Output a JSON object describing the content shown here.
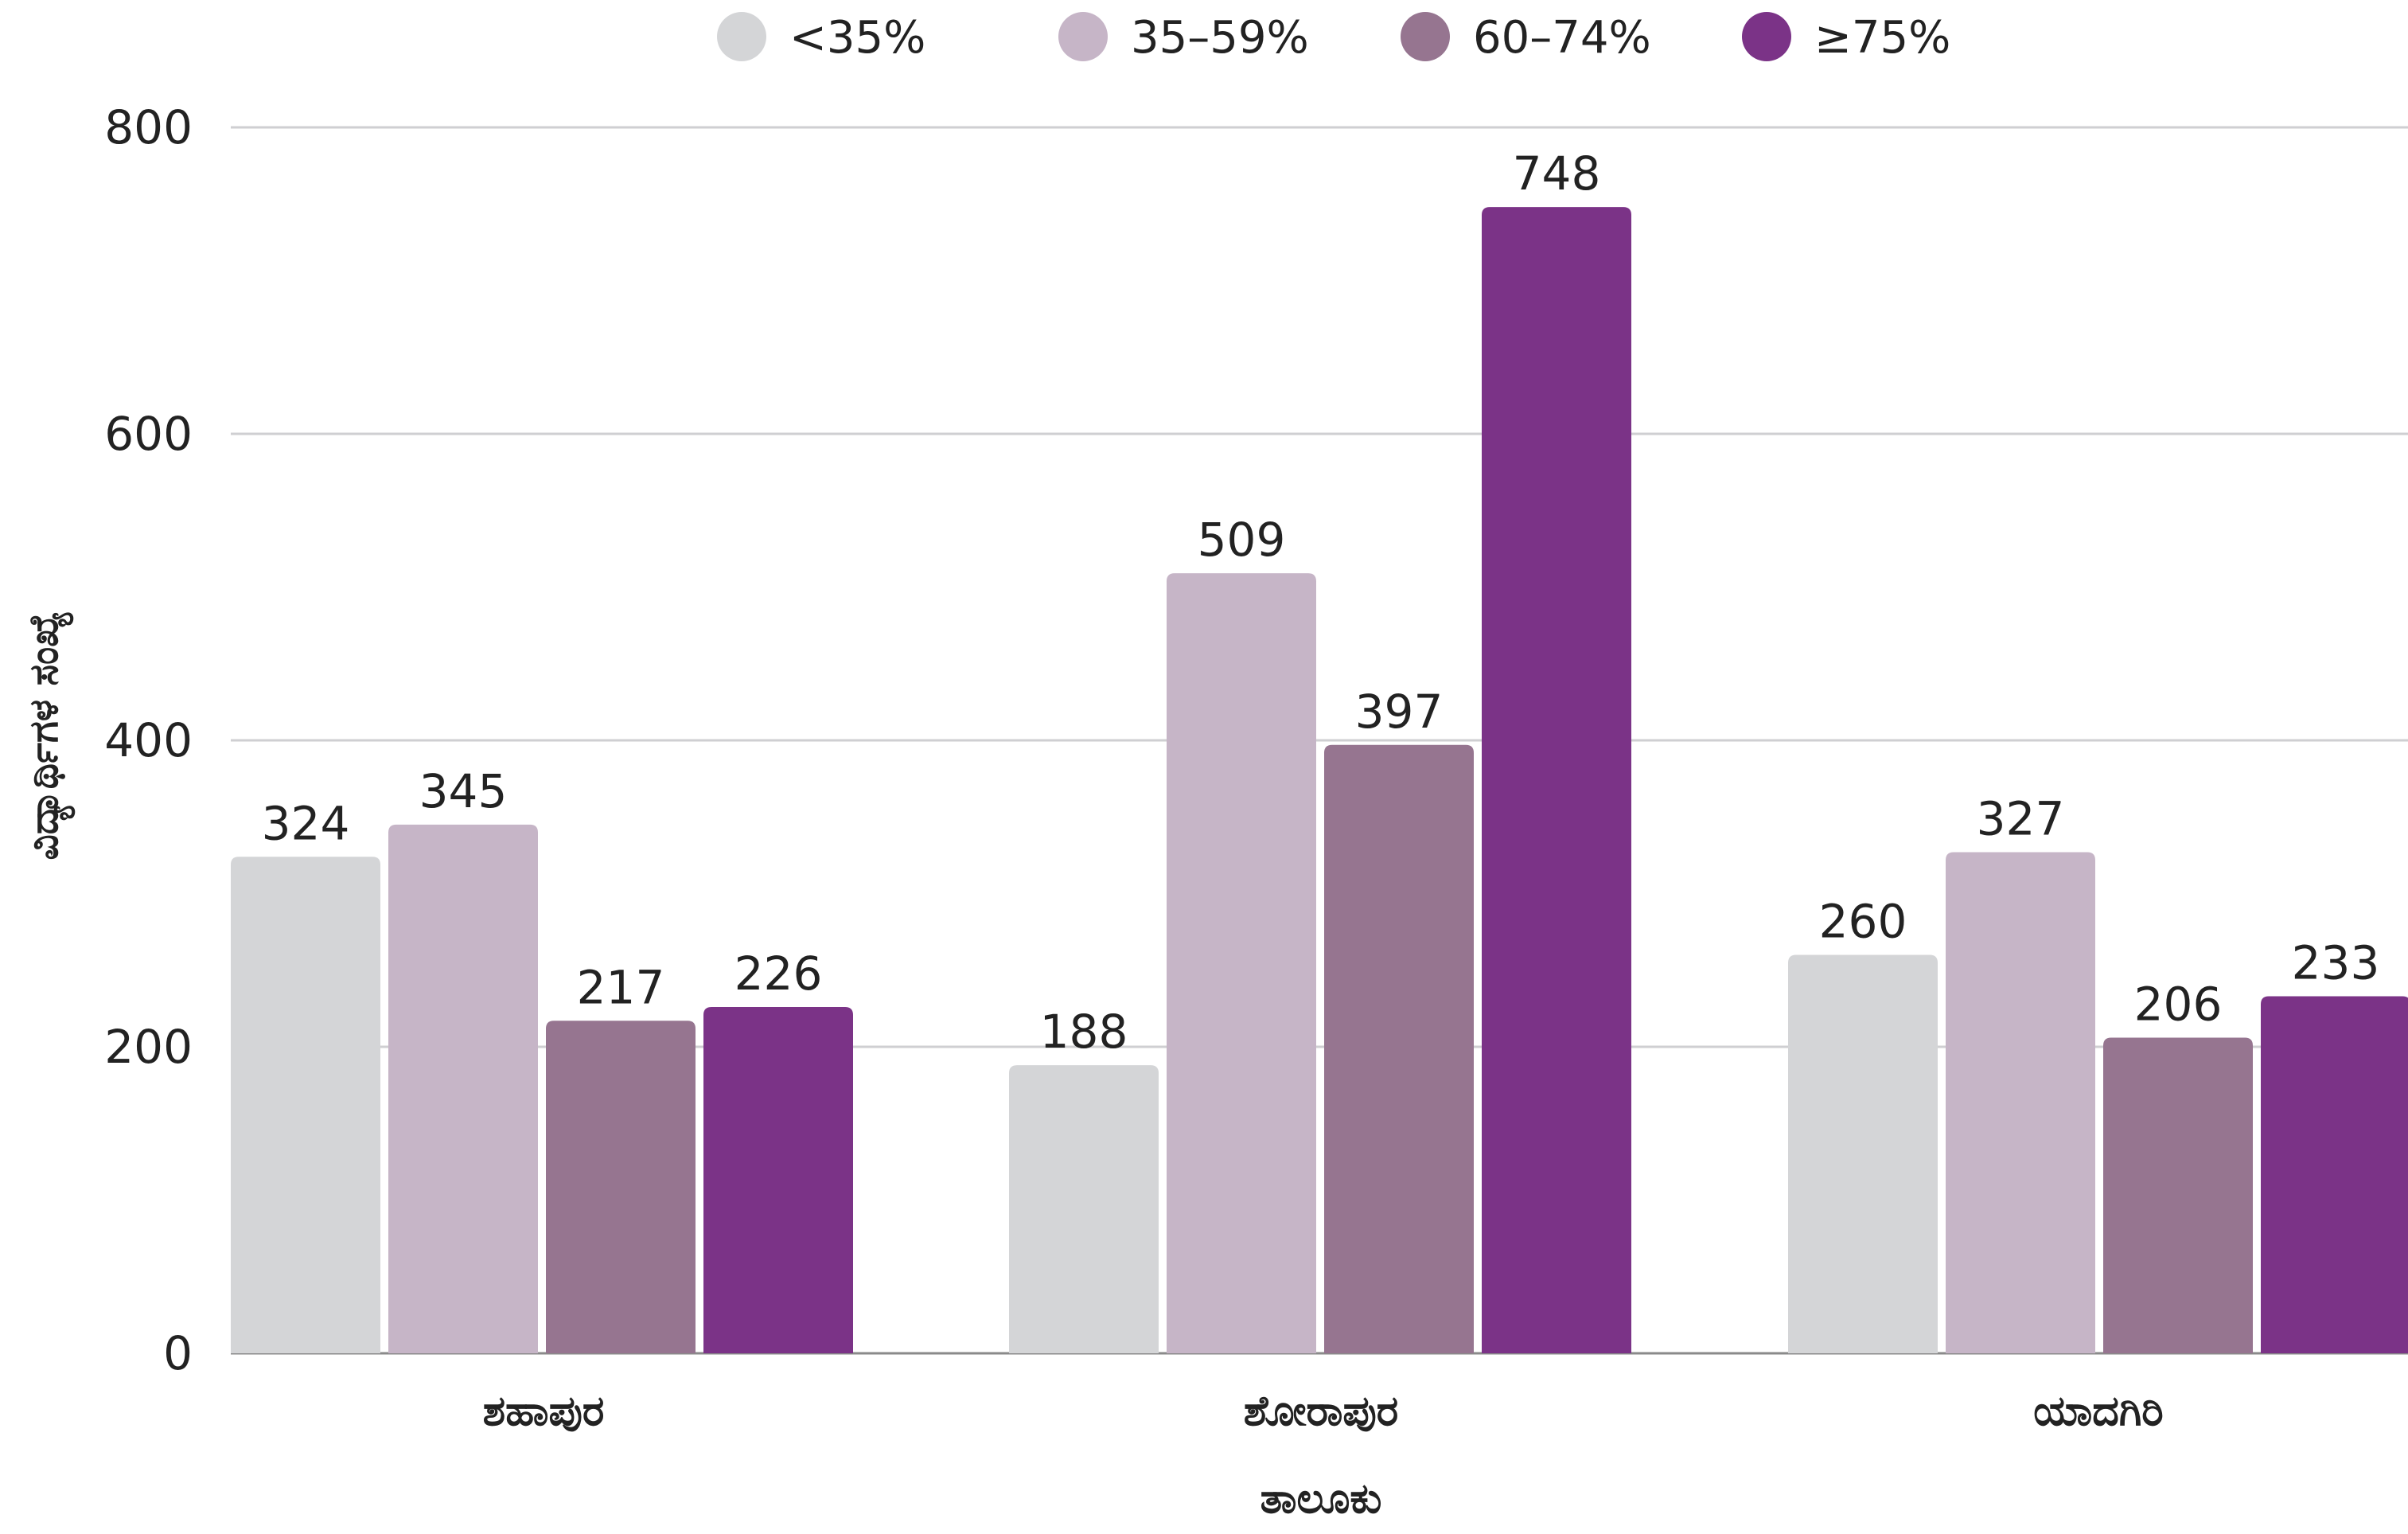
{
  "chart_data": {
    "type": "bar",
    "title": "",
    "xlabel": "ತಾಲೂಕು",
    "ylabel": "ವಿದ್ಯಾರ್ಥಿಗಳ ಸಂಖ್ಯೆ",
    "categories": [
      "ಶಹಾಪುರ",
      "ಶೋರಾಪುರ",
      "ಯಾದಗಿರಿ"
    ],
    "series": [
      {
        "name": "<35%",
        "color": "#d4d5d7",
        "values": [
          324,
          188,
          260
        ]
      },
      {
        "name": "35–59%",
        "color": "#c6b5c7",
        "values": [
          345,
          509,
          327
        ]
      },
      {
        "name": "60–74%",
        "color": "#967590",
        "values": [
          217,
          397,
          206
        ]
      },
      {
        "name": "≥75%",
        "color": "#7b3387",
        "values": [
          226,
          748,
          233
        ]
      }
    ],
    "ylim": [
      0,
      800
    ],
    "yticks": [
      0,
      200,
      400,
      600,
      800
    ],
    "grid": true,
    "legend_position": "top-center",
    "data_labels": true
  }
}
